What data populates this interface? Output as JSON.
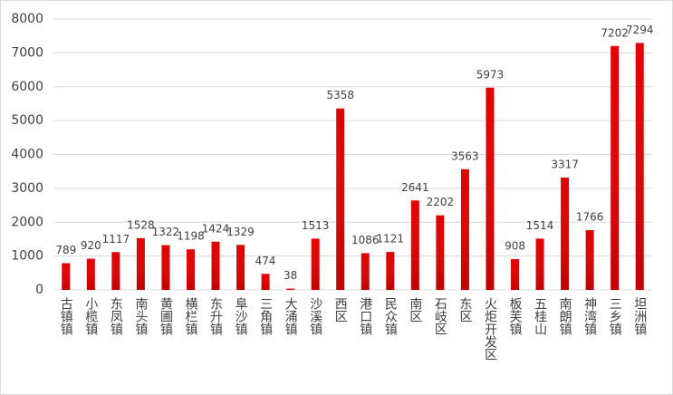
{
  "chart_data": {
    "type": "bar",
    "categories": [
      "古镇镇",
      "小榄镇",
      "东凤镇",
      "南头镇",
      "黄圃镇",
      "横栏镇",
      "东升镇",
      "阜沙镇",
      "三角镇",
      "大涌镇",
      "沙溪镇",
      "西区",
      "港口镇",
      "民众镇",
      "南区",
      "石岐区",
      "东区",
      "火炬开发区",
      "板芙镇",
      "五桂山",
      "南朗镇",
      "神湾镇",
      "三乡镇",
      "坦洲镇"
    ],
    "values": [
      789,
      920,
      1117,
      1528,
      1322,
      1198,
      1424,
      1329,
      474,
      38,
      1513,
      5358,
      1086,
      1121,
      2641,
      2202,
      3563,
      5973,
      908,
      1514,
      3317,
      1766,
      7202,
      7294
    ],
    "color": "#e00000",
    "ylim": [
      0,
      8000
    ],
    "yticks": [
      0,
      1000,
      2000,
      3000,
      4000,
      5000,
      6000,
      7000,
      8000
    ],
    "grid": true
  }
}
